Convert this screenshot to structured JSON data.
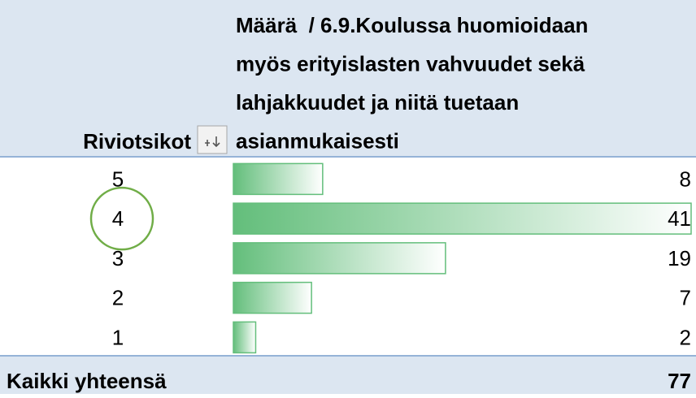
{
  "table": {
    "header": {
      "row_label": "Riviotsikot",
      "value_label_lines": [
        "Määrä  / 6.9.Koulussa huomioidaan",
        "myös erityislasten vahvuudet sekä",
        "lahjakkuudet ja niitä tuetaan",
        "asianmukaisesti"
      ]
    },
    "rows": [
      [
        "5",
        8
      ],
      [
        "4",
        41
      ],
      [
        "3",
        19
      ],
      [
        "2",
        7
      ],
      [
        "1",
        2
      ]
    ],
    "total": [
      "Kaikki yhteensä",
      77
    ],
    "bar_color": "#63be7b",
    "highlight_row": 1
  }
}
